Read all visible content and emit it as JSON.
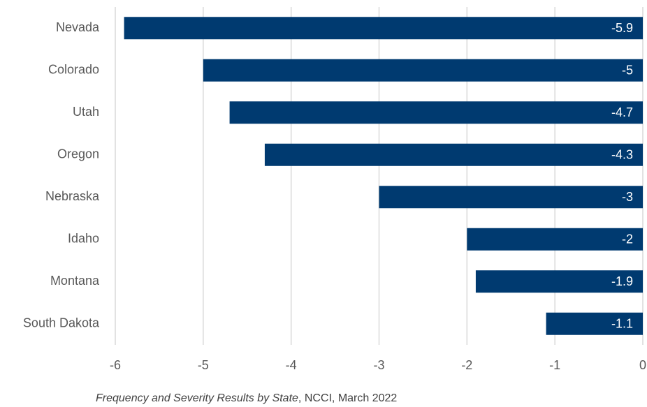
{
  "chart_data": {
    "type": "bar",
    "categories": [
      "Nevada",
      "Colorado",
      "Utah",
      "Oregon",
      "Nebraska",
      "Idaho",
      "Montana",
      "South Dakota"
    ],
    "values": [
      -5.9,
      -5,
      -4.7,
      -4.3,
      -3,
      -2,
      -1.9,
      -1.1
    ],
    "color": "#003a70",
    "xlim": [
      -6,
      0
    ],
    "xticks": [
      -6,
      -5,
      -4,
      -3,
      -2,
      -1,
      0
    ],
    "grid": true
  },
  "caption": {
    "source_title": "Frequency and Severity Results by State",
    "details": ", NCCI, March 2022"
  }
}
